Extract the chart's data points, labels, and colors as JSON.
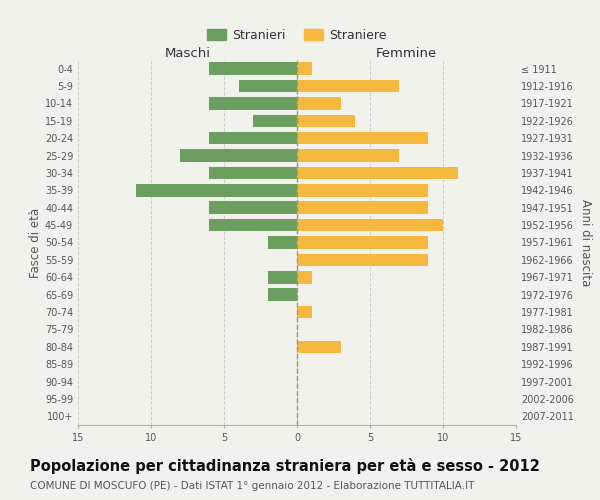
{
  "age_groups": [
    "0-4",
    "5-9",
    "10-14",
    "15-19",
    "20-24",
    "25-29",
    "30-34",
    "35-39",
    "40-44",
    "45-49",
    "50-54",
    "55-59",
    "60-64",
    "65-69",
    "70-74",
    "75-79",
    "80-84",
    "85-89",
    "90-94",
    "95-99",
    "100+"
  ],
  "birth_years": [
    "2007-2011",
    "2002-2006",
    "1997-2001",
    "1992-1996",
    "1987-1991",
    "1982-1986",
    "1977-1981",
    "1972-1976",
    "1967-1971",
    "1962-1966",
    "1957-1961",
    "1952-1956",
    "1947-1951",
    "1942-1946",
    "1937-1941",
    "1932-1936",
    "1927-1931",
    "1922-1926",
    "1917-1921",
    "1912-1916",
    "≤ 1911"
  ],
  "males": [
    6,
    4,
    6,
    3,
    6,
    8,
    6,
    11,
    6,
    6,
    2,
    0,
    2,
    2,
    0,
    0,
    0,
    0,
    0,
    0,
    0
  ],
  "females": [
    1,
    7,
    3,
    4,
    9,
    7,
    11,
    9,
    9,
    10,
    9,
    9,
    1,
    0,
    1,
    0,
    3,
    0,
    0,
    0,
    0
  ],
  "male_color": "#6b9e5e",
  "female_color": "#f6b83f",
  "background_color": "#f2f2ed",
  "grid_color": "#cccccc",
  "zero_line_color": "#aaaaaa",
  "title": "Popolazione per cittadinanza straniera per età e sesso - 2012",
  "subtitle": "COMUNE DI MOSCUFO (PE) - Dati ISTAT 1° gennaio 2012 - Elaborazione TUTTITALIA.IT",
  "ylabel_left": "Fasce di età",
  "ylabel_right": "Anni di nascita",
  "xlabel_left": "Maschi",
  "xlabel_right": "Femmine",
  "legend_male": "Stranieri",
  "legend_female": "Straniere",
  "xlim": 15,
  "title_fontsize": 10.5,
  "subtitle_fontsize": 7.5,
  "tick_fontsize": 7,
  "label_fontsize": 8.5,
  "header_fontsize": 9.5
}
